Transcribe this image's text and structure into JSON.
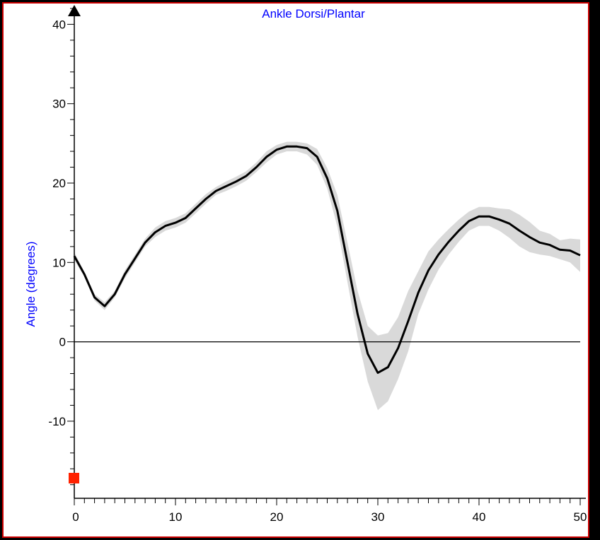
{
  "chart_data": {
    "type": "line",
    "title": "Ankle Dorsi/Plantar",
    "xlabel": "",
    "ylabel": "Angle (degrees)",
    "xlim": [
      0,
      50
    ],
    "ylim": [
      -20,
      42
    ],
    "xticks": [
      0,
      10,
      20,
      30,
      40,
      50
    ],
    "yticks": [
      -10,
      0,
      10,
      20,
      30,
      40
    ],
    "grid": false,
    "series": [
      {
        "x": [
          0,
          1,
          2,
          3,
          4,
          5,
          6,
          7,
          8,
          9,
          10,
          11,
          12,
          13,
          14,
          15,
          16,
          17,
          18,
          19,
          20,
          21,
          22,
          23,
          24,
          25,
          26,
          27,
          28,
          29,
          30,
          31,
          32,
          33,
          34,
          35,
          36,
          37,
          38,
          39,
          40,
          41,
          42,
          43,
          44,
          45,
          46,
          47,
          48,
          49,
          50
        ],
        "values": [
          10.8,
          8.5,
          5.6,
          4.5,
          6.0,
          8.5,
          10.5,
          12.5,
          13.8,
          14.6,
          15.0,
          15.6,
          16.8,
          18.0,
          19.0,
          19.6,
          20.2,
          20.9,
          22.0,
          23.3,
          24.2,
          24.6,
          24.6,
          24.4,
          23.3,
          20.6,
          16.5,
          10.0,
          3.5,
          -1.5,
          -3.9,
          -3.2,
          -0.8,
          2.6,
          6.2,
          9.0,
          11.0,
          12.6,
          14.0,
          15.2,
          15.8,
          15.8,
          15.4,
          14.9,
          14.0,
          13.2,
          12.5,
          12.2,
          11.6,
          11.5,
          10.9
        ],
        "band_low": [
          10.3,
          8.2,
          5.2,
          4.0,
          5.6,
          8.0,
          10.0,
          12.0,
          13.2,
          14.0,
          14.4,
          15.0,
          16.2,
          17.4,
          18.5,
          19.0,
          19.6,
          20.3,
          21.4,
          22.6,
          23.6,
          24.0,
          24.0,
          23.6,
          22.3,
          19.3,
          14.5,
          7.5,
          0.6,
          -5.0,
          -8.6,
          -7.5,
          -4.7,
          -1.2,
          3.5,
          6.6,
          9.1,
          11.0,
          12.6,
          14.0,
          14.6,
          14.6,
          14.0,
          13.1,
          12.0,
          11.3,
          11.0,
          10.8,
          10.4,
          10.0,
          8.8
        ],
        "band_high": [
          11.3,
          8.8,
          6.0,
          5.0,
          6.4,
          9.0,
          11.0,
          13.0,
          14.4,
          15.2,
          15.6,
          16.2,
          17.4,
          18.6,
          19.5,
          20.2,
          20.8,
          21.5,
          22.6,
          24.0,
          24.8,
          25.2,
          25.2,
          25.0,
          24.3,
          21.9,
          18.5,
          12.5,
          6.4,
          2.0,
          0.8,
          1.1,
          3.1,
          6.4,
          8.9,
          11.4,
          12.9,
          14.2,
          15.4,
          16.4,
          17.0,
          17.0,
          16.8,
          16.7,
          16.0,
          15.1,
          14.0,
          13.6,
          12.8,
          13.0,
          12.9
        ]
      }
    ]
  },
  "colors": {
    "background": "#000000",
    "plot_bg": "#ffffff",
    "frame": "#cc0000",
    "title": "#0000ff",
    "ylabel": "#0000ff",
    "line": "#000000",
    "band": "#d9d9d9",
    "marker": "#ff2200"
  }
}
